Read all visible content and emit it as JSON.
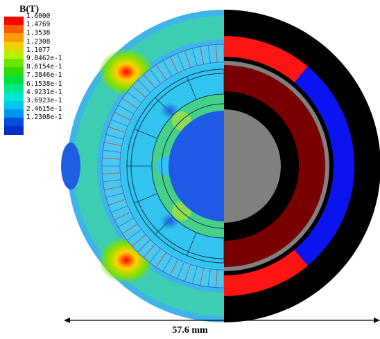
{
  "legend": {
    "title": "B(T)",
    "entries": [
      {
        "label": "1.6000",
        "color": "#ff0000"
      },
      {
        "label": "1.4769",
        "color": "#ff5a00"
      },
      {
        "label": "1.3538",
        "color": "#ff9a00"
      },
      {
        "label": "1.2308",
        "color": "#f0d000"
      },
      {
        "label": "1.1077",
        "color": "#b8f000"
      },
      {
        "label": "9.8462e-1",
        "color": "#6ee400"
      },
      {
        "label": "8.6154e-1",
        "color": "#2edc00"
      },
      {
        "label": "7.3846e-1",
        "color": "#00e040"
      },
      {
        "label": "6.1538e-1",
        "color": "#00e68c"
      },
      {
        "label": "4.9231e-1",
        "color": "#00e8d0"
      },
      {
        "label": "3.6923e-1",
        "color": "#00c8f0"
      },
      {
        "label": "2.4615e-1",
        "color": "#0096f0"
      },
      {
        "label": "1.2308e-1",
        "color": "#0050e0"
      }
    ],
    "bottom_color": "#0030c8"
  },
  "scale_bar": {
    "label": "57.6 mm"
  },
  "colors": {
    "field_background": "#3fb4e8",
    "field_inner": "#28c8f0",
    "rotor_core": "#1e5ae6",
    "right_outer": "#000000",
    "magnet_red": "#ff1414",
    "magnet_blue": "#0a14f0",
    "winding": "#780000",
    "airgap": "#808080",
    "shaft_right": "#808080"
  }
}
